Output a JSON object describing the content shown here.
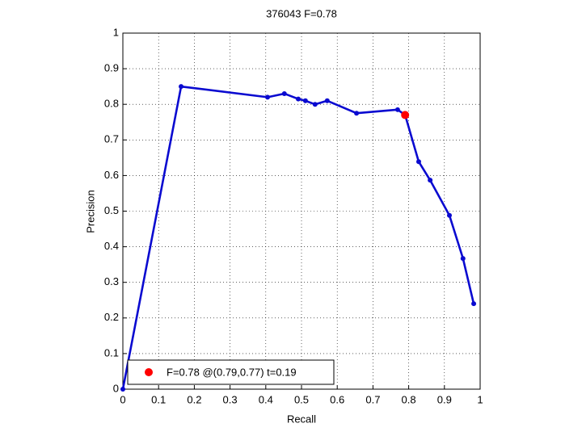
{
  "chart_data": {
    "type": "line",
    "title": "376043 F=0.78",
    "xlabel": "Recall",
    "ylabel": "Precision",
    "x": [
      0,
      0.163,
      0.405,
      0.452,
      0.491,
      0.511,
      0.538,
      0.572,
      0.654,
      0.769,
      0.79,
      0.828,
      0.86,
      0.914,
      0.952,
      0.982
    ],
    "series": [
      {
        "color": "#0a0ad0",
        "values": [
          0,
          0.85,
          0.82,
          0.83,
          0.815,
          0.81,
          0.8,
          0.81,
          0.775,
          0.785,
          0.77,
          0.639,
          0.587,
          0.488,
          0.367,
          0.24
        ]
      }
    ],
    "best": {
      "x": 0.79,
      "y": 0.77,
      "color": "#ff0000",
      "label": "F=0.78 @(0.79,0.77) t=0.19"
    },
    "xlim": [
      0,
      1
    ],
    "ylim": [
      0,
      1
    ],
    "xticks": [
      0,
      0.1,
      0.2,
      0.3,
      0.4,
      0.5,
      0.6,
      0.7,
      0.8,
      0.9,
      1
    ],
    "yticks": [
      0,
      0.1,
      0.2,
      0.3,
      0.4,
      0.5,
      0.6,
      0.7,
      0.8,
      0.9,
      1
    ],
    "grid": true,
    "legend_position": "lower left"
  }
}
